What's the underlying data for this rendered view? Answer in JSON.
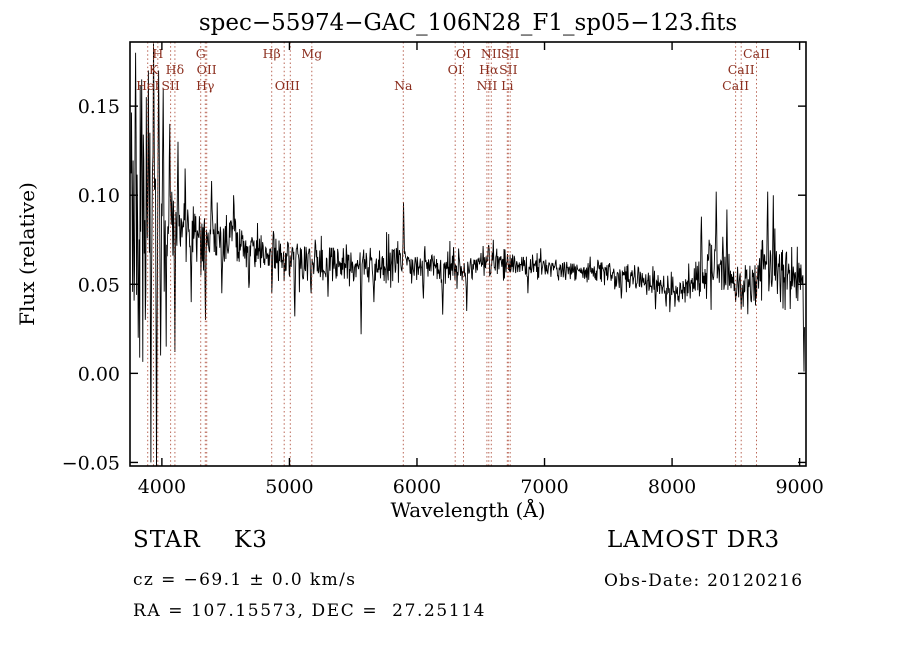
{
  "annotations": {
    "object_class": "STAR    K3",
    "cz": "cz = −69.1 ± 0.0 km/s",
    "ra_dec": "RA = 107.15573, DEC =  27.25114",
    "survey": "LAMOST DR3",
    "obs_date": "Obs-Date: 20120216"
  },
  "chart_data": {
    "type": "line",
    "title": "spec−55974−GAC_106N28_F1_sp05−123.fits",
    "xlabel": "Wavelength (Å)",
    "ylabel": "Flux (relative)",
    "xlim": [
      3750,
      9050
    ],
    "ylim": [
      -0.052,
      0.186
    ],
    "grid": false,
    "legend": "none",
    "spectrum_color": "#000000",
    "line_marker_color": "#a8402c",
    "xticks": [
      {
        "v": 4000,
        "label": "4000"
      },
      {
        "v": 5000,
        "label": "5000"
      },
      {
        "v": 6000,
        "label": "6000"
      },
      {
        "v": 7000,
        "label": "7000"
      },
      {
        "v": 8000,
        "label": "8000"
      },
      {
        "v": 9000,
        "label": "9000"
      }
    ],
    "yticks": [
      {
        "v": -0.05,
        "label": "−0.05"
      },
      {
        "v": 0.0,
        "label": "0.00"
      },
      {
        "v": 0.05,
        "label": "0.05"
      },
      {
        "v": 0.1,
        "label": "0.10"
      },
      {
        "v": 0.15,
        "label": "0.15"
      }
    ],
    "lines": [
      3889,
      3934,
      3968,
      4068,
      4102,
      4304,
      4340,
      4351,
      4861,
      4959,
      5007,
      5175,
      5893,
      6300,
      6365,
      6548,
      6563,
      6583,
      6708,
      6716,
      6731,
      8498,
      8542,
      8662
    ],
    "line_labels": [
      {
        "text": "H",
        "row": 1,
        "wl": 3968
      },
      {
        "text": "K",
        "row": 2,
        "wl": 3934
      },
      {
        "text": "Hδ",
        "row": 2,
        "wl": 4102
      },
      {
        "text": "HeI",
        "row": 3,
        "wl": 3889
      },
      {
        "text": "SII",
        "row": 3,
        "wl": 4068
      },
      {
        "text": "G",
        "row": 1,
        "wl": 4304
      },
      {
        "text": "OII",
        "row": 2,
        "wl": 4351
      },
      {
        "text": "Hγ",
        "row": 3,
        "wl": 4340
      },
      {
        "text": "Hβ",
        "row": 1,
        "wl": 4861
      },
      {
        "text": "OIII",
        "row": 3,
        "wl": 4983
      },
      {
        "text": "Mg",
        "row": 1,
        "wl": 5175
      },
      {
        "text": "Na",
        "row": 3,
        "wl": 5893
      },
      {
        "text": "OI",
        "row": 1,
        "wl": 6365
      },
      {
        "text": "OI",
        "row": 2,
        "wl": 6300
      },
      {
        "text": "NII",
        "row": 1,
        "wl": 6583
      },
      {
        "text": "SII",
        "row": 1,
        "wl": 6731
      },
      {
        "text": "Hα",
        "row": 2,
        "wl": 6563
      },
      {
        "text": "SII",
        "row": 2,
        "wl": 6716
      },
      {
        "text": "NII",
        "row": 3,
        "wl": 6548
      },
      {
        "text": "Li",
        "row": 3,
        "wl": 6708
      },
      {
        "text": "CaII",
        "row": 1,
        "wl": 8662
      },
      {
        "text": "CaII",
        "row": 2,
        "wl": 8542
      },
      {
        "text": "CaII",
        "row": 3,
        "wl": 8498
      }
    ],
    "spectrum": {
      "seed": 20120216,
      "x_start": 3758,
      "x_end": 9038,
      "step": 4,
      "x": [
        3758,
        3800,
        3850,
        3900,
        3950,
        4000,
        4050,
        4100,
        4150,
        4250,
        4350,
        4500,
        4700,
        4900,
        5100,
        5300,
        5500,
        5700,
        5850,
        5950,
        6100,
        6300,
        6500,
        6700,
        6900,
        7100,
        7300,
        7500,
        7700,
        7900,
        8000,
        8100,
        8200,
        8300,
        8400,
        8500,
        8600,
        8700,
        8800,
        8900,
        9000,
        9040
      ],
      "mean": [
        0.085,
        0.09,
        0.085,
        0.082,
        0.085,
        0.085,
        0.083,
        0.082,
        0.082,
        0.08,
        0.078,
        0.075,
        0.07,
        0.066,
        0.064,
        0.062,
        0.061,
        0.06,
        0.063,
        0.061,
        0.06,
        0.059,
        0.062,
        0.063,
        0.061,
        0.059,
        0.058,
        0.057,
        0.053,
        0.049,
        0.048,
        0.047,
        0.05,
        0.055,
        0.058,
        0.05,
        0.048,
        0.058,
        0.062,
        0.056,
        0.053,
        0.05
      ],
      "sigma": [
        0.04,
        0.042,
        0.035,
        0.03,
        0.028,
        0.022,
        0.016,
        0.013,
        0.011,
        0.01,
        0.009,
        0.008,
        0.007,
        0.0065,
        0.006,
        0.006,
        0.0055,
        0.0055,
        0.006,
        0.005,
        0.005,
        0.005,
        0.0045,
        0.004,
        0.0035,
        0.003,
        0.003,
        0.0035,
        0.004,
        0.0045,
        0.005,
        0.005,
        0.006,
        0.008,
        0.009,
        0.006,
        0.006,
        0.009,
        0.01,
        0.007,
        0.006,
        0.006
      ],
      "spikes": [
        [
          3795,
          0.18
        ],
        [
          3815,
          0.02
        ],
        [
          3840,
          0.165
        ],
        [
          3870,
          0.03
        ],
        [
          3895,
          0.17
        ],
        [
          3915,
          -0.05
        ],
        [
          3935,
          0.185
        ],
        [
          3958,
          -0.055
        ],
        [
          3972,
          0.17
        ],
        [
          3990,
          0.01
        ],
        [
          4010,
          0.16
        ],
        [
          4035,
          0.015
        ],
        [
          4060,
          0.14
        ],
        [
          4101,
          0.012
        ],
        [
          4125,
          0.13
        ],
        [
          4180,
          0.115
        ],
        [
          4230,
          0.04
        ],
        [
          4304,
          0.055
        ],
        [
          4340,
          0.03
        ],
        [
          4390,
          0.108
        ],
        [
          4470,
          0.045
        ],
        [
          4560,
          0.1
        ],
        [
          4680,
          0.048
        ],
        [
          4861,
          0.045
        ],
        [
          5040,
          0.032
        ],
        [
          5170,
          0.045
        ],
        [
          5300,
          0.043
        ],
        [
          5560,
          0.022
        ],
        [
          5660,
          0.04
        ],
        [
          5893,
          0.096
        ],
        [
          6050,
          0.042
        ],
        [
          6200,
          0.033
        ],
        [
          6390,
          0.035
        ],
        [
          6563,
          0.072
        ],
        [
          6870,
          0.045
        ],
        [
          7600,
          0.042
        ],
        [
          7870,
          0.036
        ],
        [
          8230,
          0.088
        ],
        [
          8290,
          0.075
        ],
        [
          8345,
          0.102
        ],
        [
          8430,
          0.092
        ],
        [
          8498,
          0.04
        ],
        [
          8542,
          0.036
        ],
        [
          8620,
          0.04
        ],
        [
          8662,
          0.042
        ],
        [
          8750,
          0.102
        ],
        [
          8795,
          0.1
        ],
        [
          8850,
          0.04
        ],
        [
          9035,
          0.001
        ]
      ]
    }
  }
}
